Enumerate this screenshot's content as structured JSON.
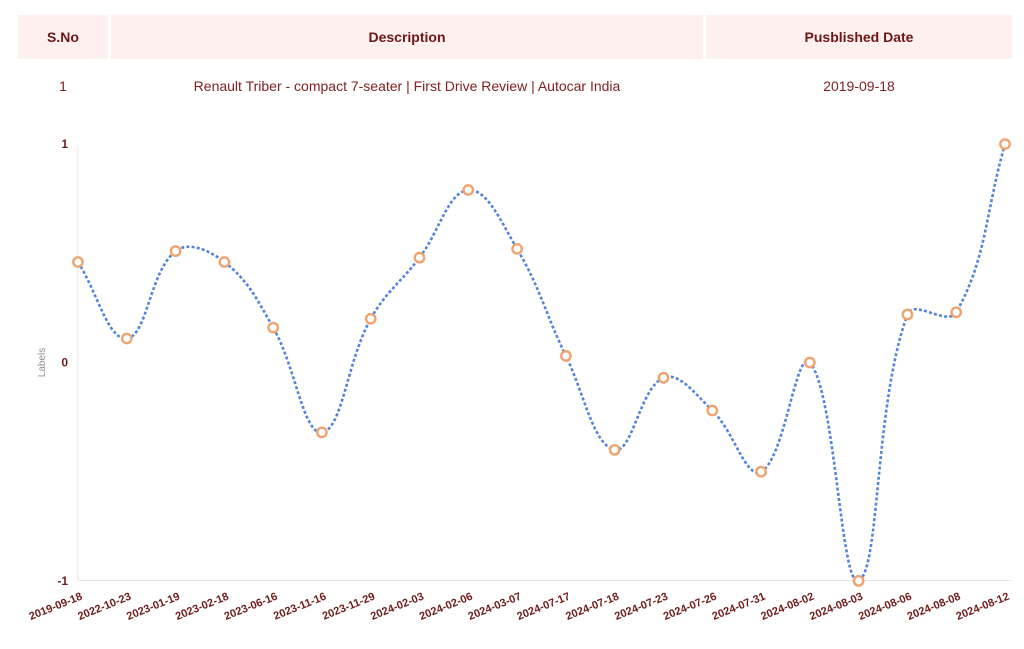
{
  "table": {
    "columns": [
      {
        "label": "S.No"
      },
      {
        "label": "Description"
      },
      {
        "label": "Pusblished Date"
      }
    ],
    "rows": [
      {
        "sno": "1",
        "description": "Renault Triber - compact 7-seater | First Drive Review | Autocar India",
        "published_date": "2019-09-18"
      }
    ]
  },
  "chart_data": {
    "type": "line",
    "title": "",
    "xlabel": "",
    "ylabel": "Labels",
    "x": [
      "2019-09-18",
      "2022-10-23",
      "2023-01-19",
      "2023-02-18",
      "2023-06-16",
      "2023-11-16",
      "2023-11-29",
      "2024-02-03",
      "2024-02-06",
      "2024-03-07",
      "2024-07-17",
      "2024-07-18",
      "2024-07-23",
      "2024-07-26",
      "2024-07-31",
      "2024-08-02",
      "2024-08-03",
      "2024-08-06",
      "2024-08-08",
      "2024-08-12"
    ],
    "series": [
      {
        "name": "Labels",
        "values": [
          0.46,
          0.11,
          0.51,
          0.46,
          0.16,
          -0.32,
          0.2,
          0.48,
          0.79,
          0.52,
          0.03,
          -0.4,
          -0.07,
          -0.22,
          -0.5,
          0.0,
          -1.0,
          0.22,
          0.23,
          1.0
        ]
      }
    ],
    "ylim": [
      -1,
      1
    ],
    "yticks": [
      "1",
      "0",
      "-1"
    ],
    "ytick_values": [
      1,
      0,
      -1
    ],
    "grid": false,
    "legend": "none",
    "line_style": "dashed",
    "curve": "smooth",
    "colors": {
      "line": "#5585d9",
      "marker_ring": "#efa36f",
      "marker_fill": "#ffffff",
      "tick_text": "#701c1c",
      "axis_line": "#e7e7e7",
      "ylabel_text": "#8f8f8f"
    }
  },
  "theme": {
    "header_bg": "#fdf0ee",
    "header_text": "#6d1616",
    "body_text": "#7e2222",
    "page_bg": "#ffffff"
  }
}
